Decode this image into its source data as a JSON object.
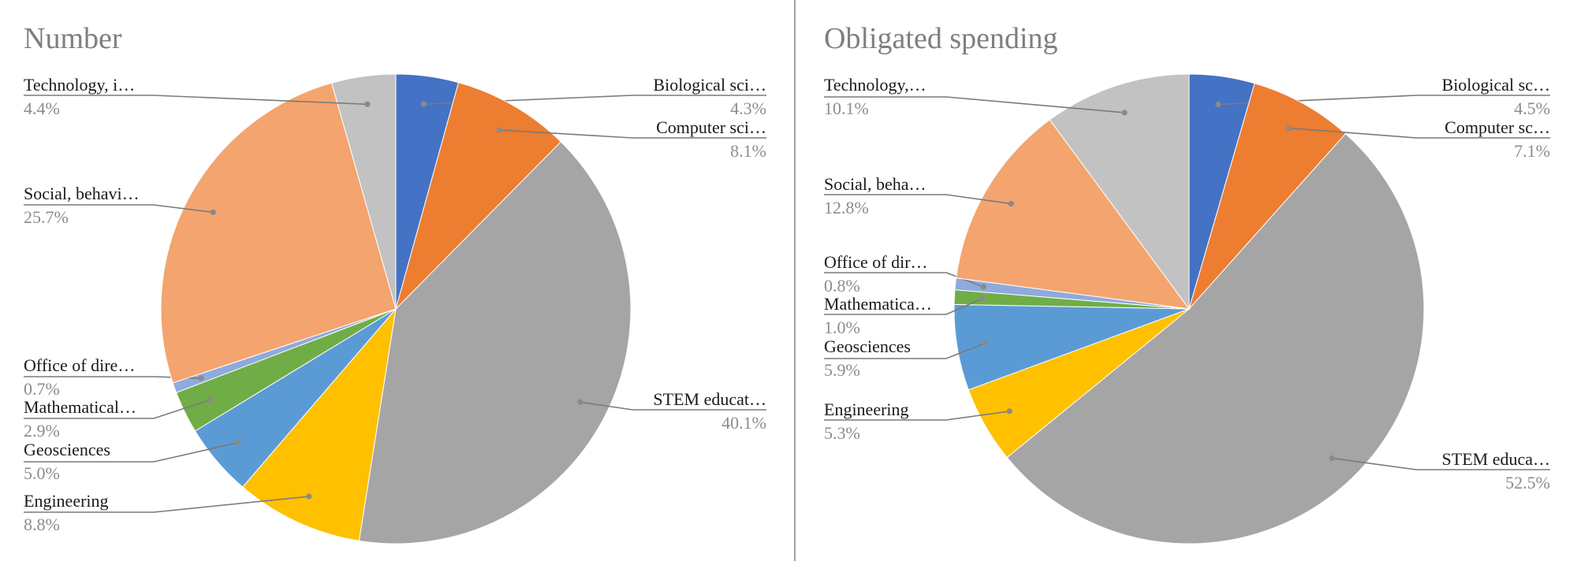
{
  "chart_data": [
    {
      "type": "pie",
      "title": "Number",
      "slices": [
        {
          "label": "Biological sci…",
          "pct_text": "4.3%",
          "value": 4.3,
          "color": "#4472C4"
        },
        {
          "label": "Computer sci…",
          "pct_text": "8.1%",
          "value": 8.1,
          "color": "#ED7D31"
        },
        {
          "label": "STEM educat…",
          "pct_text": "40.1%",
          "value": 40.1,
          "color": "#A5A5A5"
        },
        {
          "label": "Engineering",
          "pct_text": "8.8%",
          "value": 8.8,
          "color": "#FFC000"
        },
        {
          "label": "Geosciences",
          "pct_text": "5.0%",
          "value": 5.0,
          "color": "#5B9BD5"
        },
        {
          "label": "Mathematical…",
          "pct_text": "2.9%",
          "value": 2.9,
          "color": "#70AD47"
        },
        {
          "label": "Office of dire…",
          "pct_text": "0.7%",
          "value": 0.7,
          "color": "#8FAADC"
        },
        {
          "label": "Social, behavi…",
          "pct_text": "25.7%",
          "value": 25.7,
          "color": "#F4A46E"
        },
        {
          "label": "Technology, i…",
          "pct_text": "4.4%",
          "value": 4.4,
          "color": "#C2C2C2"
        }
      ]
    },
    {
      "type": "pie",
      "title": "Obligated spending",
      "slices": [
        {
          "label": "Biological sc…",
          "pct_text": "4.5%",
          "value": 4.5,
          "color": "#4472C4"
        },
        {
          "label": "Computer sc…",
          "pct_text": "7.1%",
          "value": 7.1,
          "color": "#ED7D31"
        },
        {
          "label": "STEM educa…",
          "pct_text": "52.5%",
          "value": 52.5,
          "color": "#A5A5A5"
        },
        {
          "label": "Engineering",
          "pct_text": "5.3%",
          "value": 5.3,
          "color": "#FFC000"
        },
        {
          "label": "Geosciences",
          "pct_text": "5.9%",
          "value": 5.9,
          "color": "#5B9BD5"
        },
        {
          "label": "Mathematica…",
          "pct_text": "1.0%",
          "value": 1.0,
          "color": "#70AD47"
        },
        {
          "label": "Office of dir…",
          "pct_text": "0.8%",
          "value": 0.8,
          "color": "#8FAADC"
        },
        {
          "label": "Social, beha…",
          "pct_text": "12.8%",
          "value": 12.8,
          "color": "#F4A46E"
        },
        {
          "label": "Technology,…",
          "pct_text": "10.1%",
          "value": 10.1,
          "color": "#C2C2C2"
        }
      ]
    }
  ]
}
